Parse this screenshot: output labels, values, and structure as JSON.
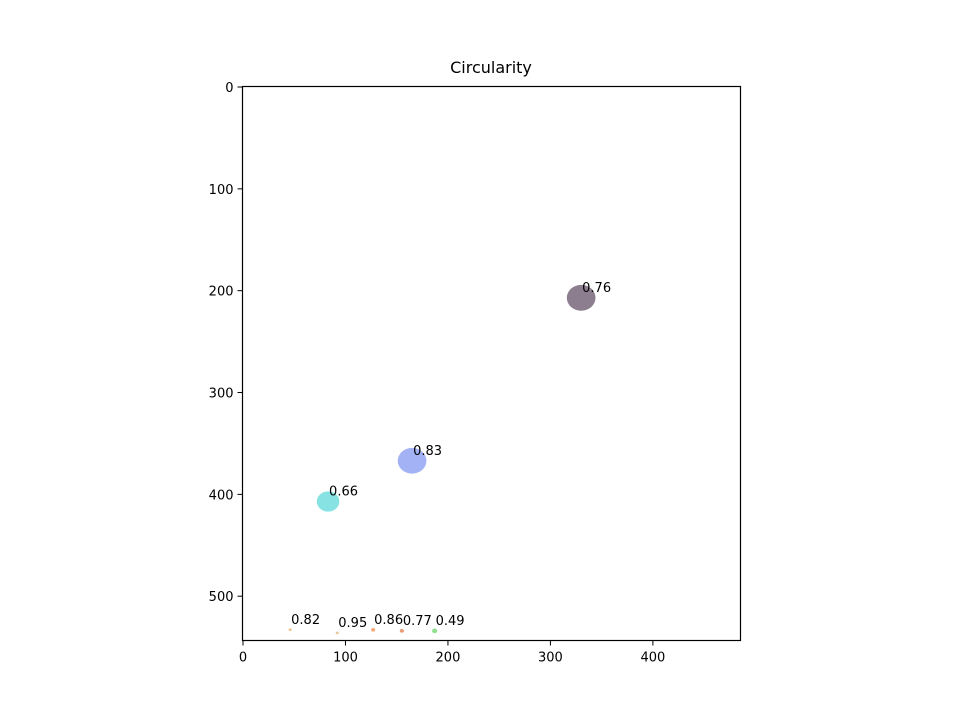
{
  "chart_data": {
    "type": "scatter",
    "title": "Circularity",
    "xlabel": "",
    "ylabel": "",
    "xlim": [
      -0.5,
      485.5
    ],
    "ylim": [
      543.5,
      -0.5
    ],
    "y_inverted": true,
    "grid": false,
    "xticks": [
      0,
      100,
      200,
      300,
      400
    ],
    "yticks": [
      0,
      100,
      200,
      300,
      400,
      500
    ],
    "regions": [
      {
        "label": "0.76",
        "x": 330,
        "y": 207,
        "size": 14,
        "color": "#8c7e8f"
      },
      {
        "label": "0.83",
        "x": 165,
        "y": 367,
        "size": 14,
        "color": "#a3b2f5"
      },
      {
        "label": "0.66",
        "x": 83,
        "y": 407,
        "size": 11,
        "color": "#87e3e3"
      },
      {
        "label": "0.82",
        "x": 46,
        "y": 533,
        "size": 1.5,
        "color": "#f0c48c"
      },
      {
        "label": "0.95",
        "x": 92,
        "y": 536,
        "size": 1.5,
        "color": "#e6c8a0"
      },
      {
        "label": "0.86",
        "x": 127,
        "y": 533,
        "size": 2,
        "color": "#f5a878"
      },
      {
        "label": "0.77",
        "x": 155,
        "y": 534,
        "size": 2,
        "color": "#e89a78"
      },
      {
        "label": "0.49",
        "x": 187,
        "y": 534,
        "size": 2.5,
        "color": "#8ee08e"
      }
    ]
  }
}
